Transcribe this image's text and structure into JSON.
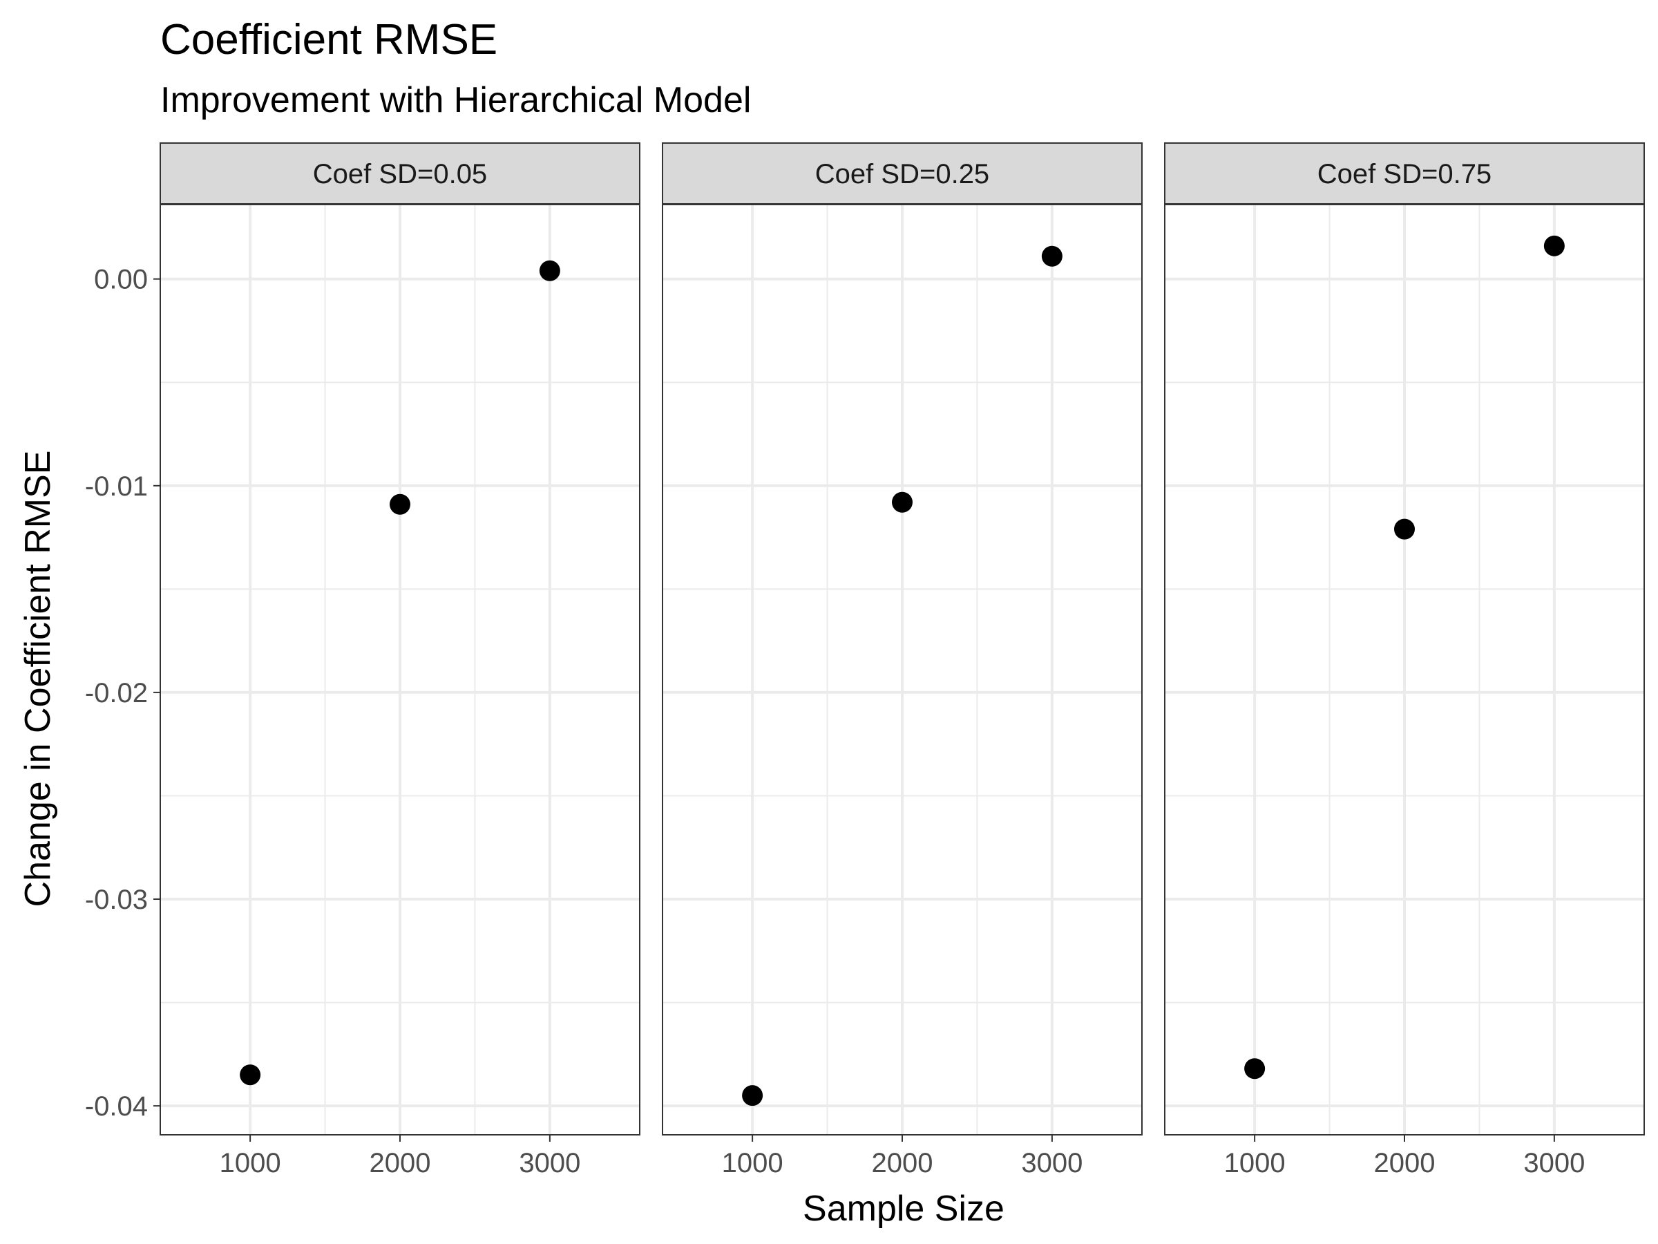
{
  "chart_data": {
    "type": "scatter",
    "title": "Coefficient RMSE",
    "subtitle": "Improvement with Hierarchical Model",
    "xlabel": "Sample Size",
    "ylabel": "Change in Coefficient RMSE",
    "x_ticks": [
      1000,
      2000,
      3000
    ],
    "x_tick_labels": [
      "1000",
      "2000",
      "3000"
    ],
    "y_ticks": [
      0.0,
      -0.01,
      -0.02,
      -0.03,
      -0.04
    ],
    "y_tick_labels": [
      "0.00",
      "-0.01",
      "-0.02",
      "-0.03",
      "-0.04"
    ],
    "xlim": [
      400,
      3600
    ],
    "ylim": [
      -0.0414,
      0.0036
    ],
    "grid": true,
    "facets": [
      {
        "label": "Coef SD=0.05",
        "x": [
          1000,
          2000,
          3000
        ],
        "y": [
          -0.0385,
          -0.0109,
          0.0004
        ]
      },
      {
        "label": "Coef SD=0.25",
        "x": [
          1000,
          2000,
          3000
        ],
        "y": [
          -0.0395,
          -0.0108,
          0.0011
        ]
      },
      {
        "label": "Coef SD=0.75",
        "x": [
          1000,
          2000,
          3000
        ],
        "y": [
          -0.0382,
          -0.0121,
          0.0016
        ]
      }
    ]
  }
}
